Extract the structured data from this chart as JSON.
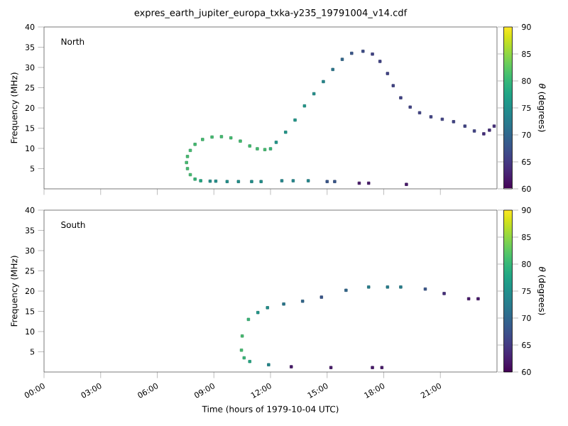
{
  "chart_data": [
    {
      "type": "scatter",
      "title": "expres_earth_jupiter_europa_txka-y235_19791004_v14.cdf",
      "ylabel": "Frequency (MHz)",
      "clabel": "*θ* (degrees)",
      "annotations": [
        "North"
      ],
      "marker": "square",
      "tick_labels": "y",
      "xlim": [
        0,
        24
      ],
      "ylim": [
        0,
        40
      ],
      "xticks": [
        {
          "value": 0,
          "label": null
        },
        {
          "value": 3,
          "label": null
        },
        {
          "value": 6,
          "label": null
        },
        {
          "value": 9,
          "label": null
        },
        {
          "value": 12,
          "label": null
        },
        {
          "value": 15,
          "label": null
        },
        {
          "value": 18,
          "label": null
        },
        {
          "value": 21,
          "label": null
        }
      ],
      "yticks": [
        5,
        10,
        15,
        20,
        25,
        30,
        35,
        40
      ],
      "clim": [
        60,
        90
      ],
      "cticks": [
        60,
        65,
        70,
        75,
        80,
        85,
        90
      ],
      "x": [
        8.3,
        8.0,
        7.75,
        7.6,
        7.55,
        7.6,
        7.75,
        8.0,
        8.4,
        8.9,
        9.4,
        9.9,
        10.4,
        10.9,
        11.3,
        11.7,
        12.0,
        12.3,
        12.8,
        13.3,
        13.8,
        14.3,
        14.8,
        15.3,
        15.8,
        16.3,
        16.9,
        17.4,
        17.8,
        18.2,
        18.5,
        18.9,
        19.4,
        19.9,
        20.5,
        21.1,
        21.7,
        22.3,
        22.8,
        23.3,
        23.6,
        23.85,
        8.8,
        9.1,
        9.7,
        10.3,
        11.0,
        11.5,
        12.6,
        13.2,
        14.0,
        15.0,
        15.4,
        16.7,
        17.2,
        19.2
      ],
      "values": [
        2.0,
        2.4,
        3.5,
        5,
        6.5,
        8,
        9.5,
        11,
        12.2,
        12.8,
        12.9,
        12.6,
        11.8,
        10.6,
        9.9,
        9.7,
        9.9,
        11.5,
        14,
        17,
        20.5,
        23.5,
        26.5,
        29.5,
        32,
        33.5,
        34,
        33.3,
        31.5,
        28.5,
        25.5,
        22.5,
        20.2,
        18.8,
        17.8,
        17.2,
        16.6,
        15.5,
        14.3,
        13.6,
        14.5,
        15.5,
        1.9,
        1.9,
        1.8,
        1.8,
        1.8,
        1.8,
        2.0,
        2.0,
        2.0,
        1.8,
        1.8,
        1.4,
        1.4,
        1.1
      ],
      "cvalues": [
        78,
        80,
        81,
        81,
        81,
        81,
        81,
        81,
        81,
        81,
        81,
        81,
        81,
        81,
        81,
        81,
        80,
        76,
        76,
        76,
        76,
        75,
        74,
        72,
        70,
        68,
        67,
        66,
        66,
        66,
        66,
        66,
        66,
        66,
        66,
        66,
        66,
        66,
        66,
        64,
        64,
        64,
        75,
        75,
        75,
        75,
        75,
        75,
        74,
        74,
        74,
        68,
        68,
        62,
        62,
        62
      ]
    },
    {
      "type": "scatter",
      "xlabel": "Time (hours of 1979-10-04 UTC)",
      "ylabel": "Frequency (MHz)",
      "clabel": "*θ* (degrees)",
      "annotations": [
        "South"
      ],
      "marker": "square",
      "xlim": [
        0,
        24
      ],
      "ylim": [
        0,
        40
      ],
      "xticks": [
        {
          "value": 0,
          "label": "00:00"
        },
        {
          "value": 3,
          "label": "03:00"
        },
        {
          "value": 6,
          "label": "06:00"
        },
        {
          "value": 9,
          "label": "09:00"
        },
        {
          "value": 12,
          "label": "12:00"
        },
        {
          "value": 15,
          "label": "15:00"
        },
        {
          "value": 18,
          "label": "18:00"
        },
        {
          "value": 21,
          "label": "21:00"
        }
      ],
      "yticks": [
        5,
        10,
        15,
        20,
        25,
        30,
        35,
        40
      ],
      "clim": [
        60,
        90
      ],
      "cticks": [
        60,
        65,
        70,
        75,
        80,
        85,
        90
      ],
      "x": [
        10.9,
        10.6,
        10.46,
        10.5,
        10.83,
        11.33,
        11.84,
        12.7,
        13.7,
        14.7,
        16.0,
        17.2,
        18.2,
        18.9,
        20.2,
        21.2,
        22.5,
        23.0,
        11.9,
        13.1,
        15.2,
        17.4,
        17.9
      ],
      "values": [
        2.6,
        3.5,
        5.4,
        8.9,
        13,
        14.7,
        15.9,
        16.8,
        17.5,
        18.5,
        20.2,
        21,
        21,
        21,
        20.5,
        19.4,
        18.1,
        18.1,
        1.8,
        1.3,
        1.1,
        1.1,
        1.1
      ],
      "cvalues": [
        78,
        80,
        81,
        81,
        80,
        76,
        75,
        72,
        70,
        68,
        70,
        73,
        73,
        73,
        68,
        64,
        62,
        62,
        74,
        62,
        62,
        62,
        62
      ]
    }
  ]
}
